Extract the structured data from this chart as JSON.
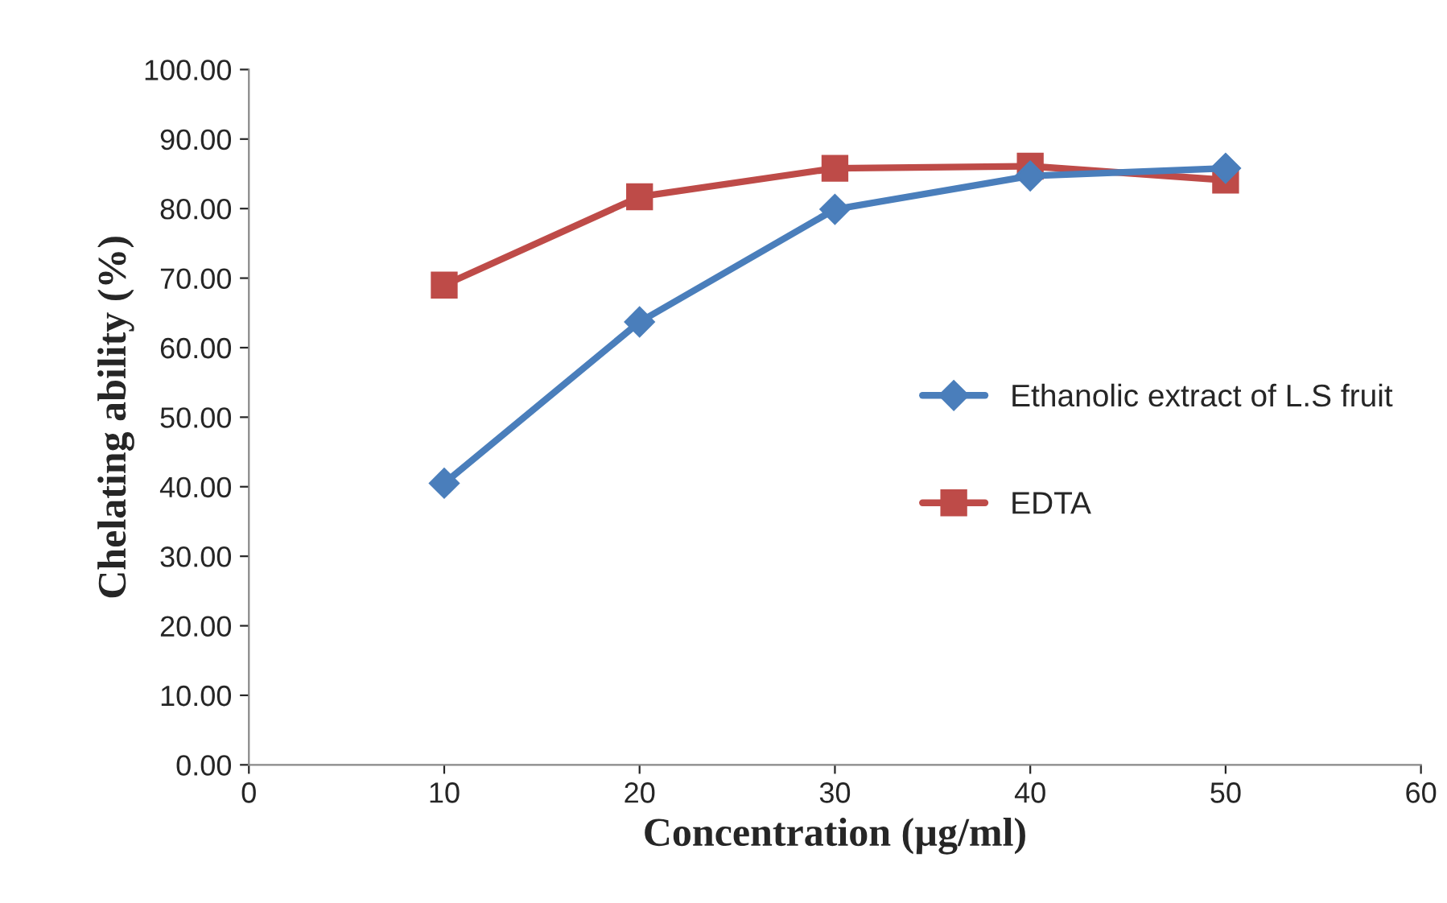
{
  "chart_data": {
    "type": "line",
    "xlabel": "Concentration (µg/ml)",
    "ylabel": "Chelating ability (%)",
    "x": [
      10,
      20,
      30,
      40,
      50
    ],
    "series": [
      {
        "name": "Ethanolic extract of L.S fruit",
        "color": "#4a7ebb",
        "marker": "diamond",
        "values": [
          40.5,
          63.7,
          79.9,
          84.7,
          85.8
        ]
      },
      {
        "name": "EDTA",
        "color": "#be4b48",
        "marker": "square",
        "values": [
          69.0,
          81.7,
          85.8,
          86.1,
          84.1
        ]
      }
    ],
    "xlim": [
      0,
      60
    ],
    "xticks": [
      0,
      10,
      20,
      30,
      40,
      50,
      60
    ],
    "ylim": [
      0,
      100
    ],
    "yticks": [
      {
        "value": 0,
        "label": "0.00"
      },
      {
        "value": 10,
        "label": "10.00"
      },
      {
        "value": 20,
        "label": "20.00"
      },
      {
        "value": 30,
        "label": "30.00"
      },
      {
        "value": 40,
        "label": "40.00"
      },
      {
        "value": 50,
        "label": "50.00"
      },
      {
        "value": 60,
        "label": "60.00"
      },
      {
        "value": 70,
        "label": "70.00"
      },
      {
        "value": 80,
        "label": "80.00"
      },
      {
        "value": 90,
        "label": "90.00"
      },
      {
        "value": 100,
        "label": "100.00"
      }
    ],
    "grid": false,
    "legend": "right",
    "line_style": "solid"
  }
}
